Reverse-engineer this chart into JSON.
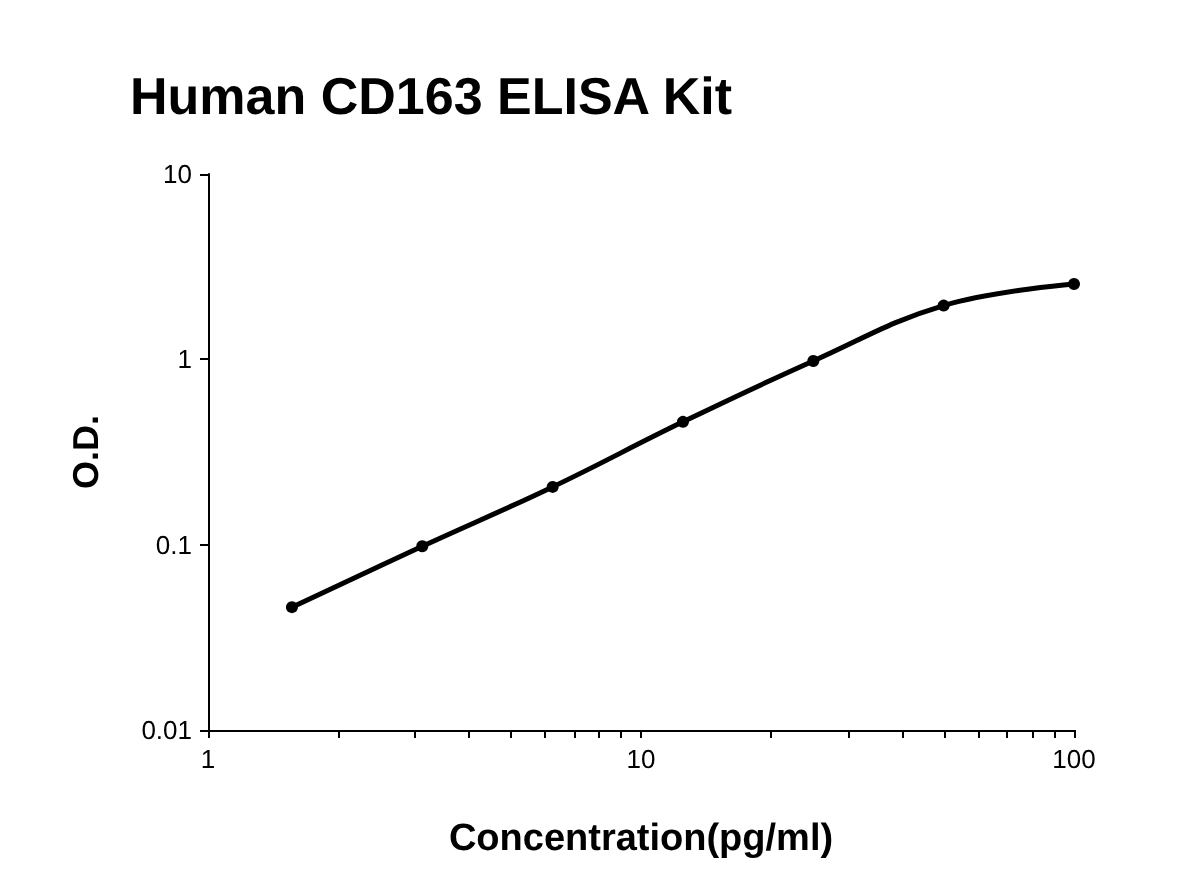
{
  "chart_data": {
    "type": "line",
    "title": "Human CD163 ELISA Kit",
    "xlabel": "Concentration(pg/ml)",
    "ylabel": "O.D.",
    "x": [
      1.5625,
      3.125,
      6.25,
      12.5,
      25,
      50,
      100
    ],
    "series": [
      {
        "color": "#000000",
        "values": [
          0.046,
          0.098,
          0.205,
          0.46,
          0.98,
          1.95,
          2.55
        ]
      }
    ],
    "log": "xy",
    "xlim": [
      1,
      100
    ],
    "ylim": [
      0.01,
      10
    ],
    "xticks": [
      1,
      {
        "value": 2,
        "label": null
      },
      {
        "value": 3,
        "label": null
      },
      {
        "value": 4,
        "label": null
      },
      {
        "value": 5,
        "label": null
      },
      {
        "value": 6,
        "label": null
      },
      {
        "value": 7,
        "label": null
      },
      {
        "value": 8,
        "label": null
      },
      {
        "value": 9,
        "label": null
      },
      10,
      {
        "value": 20,
        "label": null
      },
      {
        "value": 30,
        "label": null
      },
      {
        "value": 40,
        "label": null
      },
      {
        "value": 50,
        "label": null
      },
      {
        "value": 60,
        "label": null
      },
      {
        "value": 70,
        "label": null
      },
      {
        "value": 80,
        "label": null
      },
      {
        "value": 90,
        "label": null
      },
      100
    ],
    "yticks": [
      0.01,
      0.1,
      1,
      10
    ],
    "marker": "circle",
    "line_style": "solid",
    "grid": false
  }
}
